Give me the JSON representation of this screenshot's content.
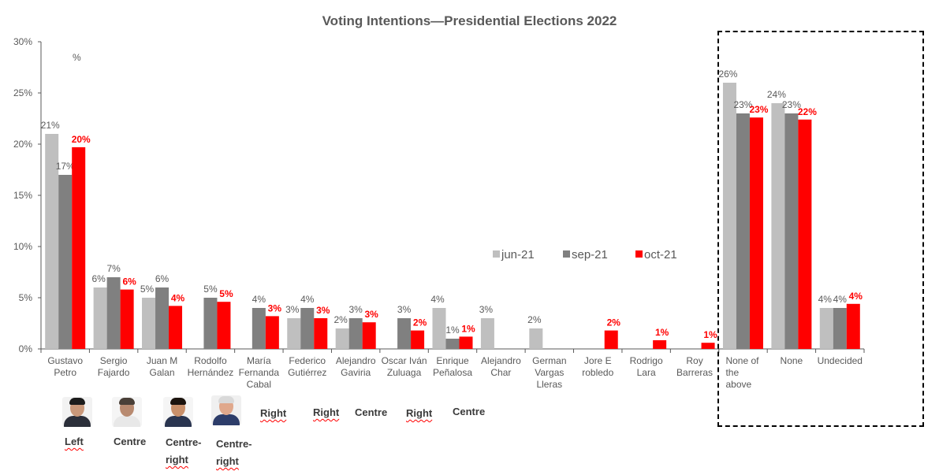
{
  "chart_data": {
    "type": "bar",
    "title": "Voting Intentions—Presidential Elections 2022",
    "xlabel": "",
    "ylabel": "",
    "ylim": [
      0,
      30
    ],
    "yticks": [
      "0%",
      "5%",
      "10%",
      "15%",
      "20%",
      "25%",
      "30%"
    ],
    "ytick_values": [
      0,
      5,
      10,
      15,
      20,
      25,
      30
    ],
    "grid": false,
    "legend_position": "center-right",
    "categories": [
      [
        "Gustavo",
        "Petro"
      ],
      [
        "Sergio",
        "Fajardo"
      ],
      [
        "Juan M",
        "Galan"
      ],
      [
        "Rodolfo",
        "Hernández"
      ],
      [
        "María",
        "Fernanda",
        "Cabal"
      ],
      [
        "Federico",
        "Gutiérrez"
      ],
      [
        "Alejandro",
        "Gaviria"
      ],
      [
        "Oscar Iván",
        "Zuluaga"
      ],
      [
        "Enrique",
        "Peñalosa"
      ],
      [
        "Alejandro",
        "Char"
      ],
      [
        "German",
        "Vargas",
        "Lleras"
      ],
      [
        "Jore E",
        "robledo"
      ],
      [
        "Rodrigo",
        "Lara"
      ],
      [
        "Roy",
        "Barreras"
      ],
      [
        "None of",
        "the",
        "above"
      ],
      [
        "None"
      ],
      [
        "Undecided"
      ]
    ],
    "series": [
      {
        "name": "jun-21",
        "color": "#bfbfbf",
        "values": [
          21,
          6,
          5,
          null,
          null,
          3,
          2,
          null,
          4,
          3,
          2,
          null,
          null,
          null,
          26,
          24,
          4
        ],
        "labels": [
          "21%",
          "6%",
          "5%",
          "",
          "",
          "3%",
          "2%",
          "",
          "4%",
          "3%",
          "2%",
          "",
          "",
          "",
          "26%",
          "24%",
          "4%"
        ]
      },
      {
        "name": "sep-21",
        "color": "#808080",
        "values": [
          17,
          7,
          6,
          5,
          4,
          4,
          3,
          3,
          1,
          null,
          null,
          null,
          null,
          null,
          23,
          23,
          4
        ],
        "labels": [
          "17%",
          "7%",
          "6%",
          "5%",
          "4%",
          "4%",
          "3%",
          "3%",
          "1%",
          "",
          "",
          "",
          "",
          "",
          "23%",
          "23%",
          "4%"
        ]
      },
      {
        "name": "oct-21",
        "color": "#ff0000",
        "values": [
          19.7,
          5.8,
          4.2,
          4.6,
          3.2,
          3.0,
          2.6,
          1.8,
          1.2,
          null,
          null,
          1.8,
          0.85,
          0.6,
          22.6,
          22.4,
          4.4
        ],
        "labels": [
          "20%",
          "6%",
          "4%",
          "5%",
          "3%",
          "3%",
          "3%",
          "2%",
          "1%",
          "",
          "",
          "2%",
          "1%",
          "1%",
          "23%",
          "22%",
          "4%"
        ]
      }
    ],
    "annotations": [
      "%"
    ]
  },
  "ideology": [
    {
      "label": "Left",
      "misspelled": true
    },
    {
      "label": "Centre",
      "misspelled": false
    },
    {
      "label": "Centre-right",
      "lines": [
        "Centre-",
        "right"
      ],
      "misspelled": true
    },
    {
      "label": "Centre-right",
      "lines": [
        "Centre-",
        "right"
      ],
      "misspelled": true
    },
    {
      "label": "Right",
      "misspelled": true
    },
    {
      "label": "Right",
      "misspelled": true
    },
    {
      "label": "Centre",
      "misspelled": false
    },
    {
      "label": "Right",
      "misspelled": true
    },
    {
      "label": "Centre",
      "misspelled": false
    }
  ],
  "candidate_photos": [
    "Gustavo Petro",
    "Sergio Fajardo",
    "Juan M Galan",
    "Rodolfo Hernández"
  ]
}
